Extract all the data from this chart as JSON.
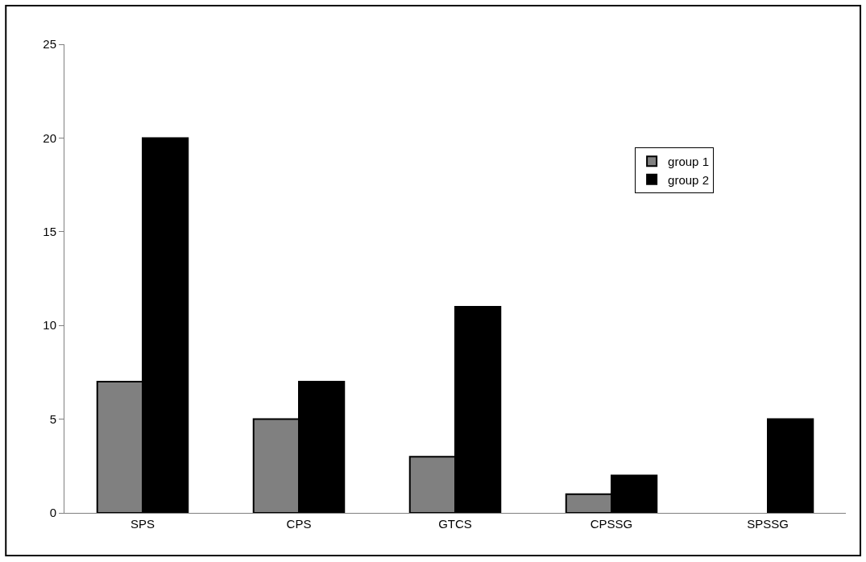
{
  "chart_data": {
    "type": "bar",
    "categories": [
      "SPS",
      "CPS",
      "GTCS",
      "CPSSG",
      "SPSSG"
    ],
    "series": [
      {
        "name": "group 1",
        "color": "#808080",
        "values": [
          7,
          5,
          3,
          1,
          null
        ]
      },
      {
        "name": "group 2",
        "color": "#000000",
        "values": [
          20,
          7,
          11,
          2,
          5
        ]
      }
    ],
    "ylim": [
      0,
      25
    ],
    "yticks": [
      0,
      5,
      10,
      15,
      20,
      25
    ],
    "legend": "top right"
  }
}
